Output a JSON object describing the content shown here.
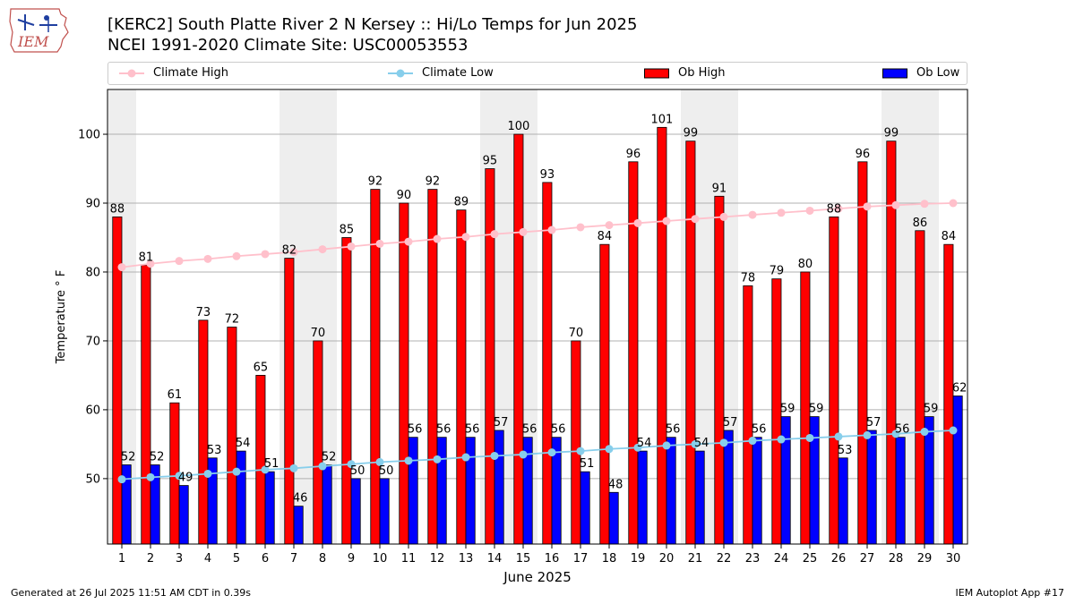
{
  "header": {
    "logo_text": "IEM",
    "title_line1": "[KERC2] South Platte River 2 N Kersey :: Hi/Lo Temps for Jun 2025",
    "title_line2": "NCEI 1991-2020 Climate Site: USC00053553"
  },
  "legend": {
    "climate_high": "Climate High",
    "climate_low": "Climate Low",
    "ob_high": "Ob High",
    "ob_low": "Ob Low"
  },
  "footer": {
    "generated": "Generated at 26 Jul 2025 11:51 AM CDT in 0.39s",
    "app": "IEM Autoplot App #17"
  },
  "colors": {
    "ob_high": "#ff0000",
    "ob_low": "#0000ff",
    "climate_high": "#ffc0cb",
    "climate_low": "#87ceeb",
    "weekend_shade": "#eeeeee",
    "grid": "#b0b0b0"
  },
  "chart_data": {
    "type": "bar",
    "xlabel": "June 2025",
    "ylabel": "Temperature ° F",
    "ylim": [
      40.5,
      106.5
    ],
    "yticks": [
      50,
      60,
      70,
      80,
      90,
      100
    ],
    "grid": "horizontal",
    "legend_position": "top",
    "categories": [
      "1",
      "2",
      "3",
      "4",
      "5",
      "6",
      "7",
      "8",
      "9",
      "10",
      "11",
      "12",
      "13",
      "14",
      "15",
      "16",
      "17",
      "18",
      "19",
      "20",
      "21",
      "22",
      "23",
      "24",
      "25",
      "26",
      "27",
      "28",
      "29",
      "30"
    ],
    "shaded_days": [
      1,
      7,
      8,
      14,
      15,
      21,
      22,
      28,
      29
    ],
    "series": [
      {
        "name": "Ob High",
        "kind": "bar",
        "values": [
          88,
          81,
          61,
          73,
          72,
          65,
          82,
          70,
          85,
          92,
          90,
          92,
          89,
          95,
          100,
          93,
          70,
          84,
          96,
          101,
          99,
          91,
          78,
          79,
          80,
          88,
          96,
          99,
          86,
          84
        ]
      },
      {
        "name": "Ob Low",
        "kind": "bar",
        "values": [
          52,
          52,
          49,
          53,
          54,
          51,
          46,
          52,
          50,
          50,
          56,
          56,
          56,
          57,
          56,
          56,
          51,
          48,
          54,
          56,
          54,
          57,
          56,
          59,
          59,
          53,
          57,
          56,
          59,
          62
        ]
      },
      {
        "name": "Climate High",
        "kind": "line",
        "values": [
          80.7,
          81.2,
          81.6,
          81.9,
          82.3,
          82.6,
          82.9,
          83.3,
          83.7,
          84.1,
          84.4,
          84.8,
          85.1,
          85.5,
          85.8,
          86.1,
          86.5,
          86.8,
          87.1,
          87.4,
          87.7,
          88.0,
          88.3,
          88.6,
          88.9,
          89.2,
          89.5,
          89.7,
          89.9,
          90.0
        ]
      },
      {
        "name": "Climate Low",
        "kind": "line",
        "values": [
          49.9,
          50.2,
          50.4,
          50.7,
          51.0,
          51.3,
          51.5,
          51.8,
          52.1,
          52.4,
          52.6,
          52.8,
          53.1,
          53.3,
          53.5,
          53.8,
          54.0,
          54.3,
          54.5,
          54.8,
          55.0,
          55.2,
          55.5,
          55.7,
          55.9,
          56.1,
          56.3,
          56.5,
          56.8,
          57.0
        ]
      }
    ]
  }
}
